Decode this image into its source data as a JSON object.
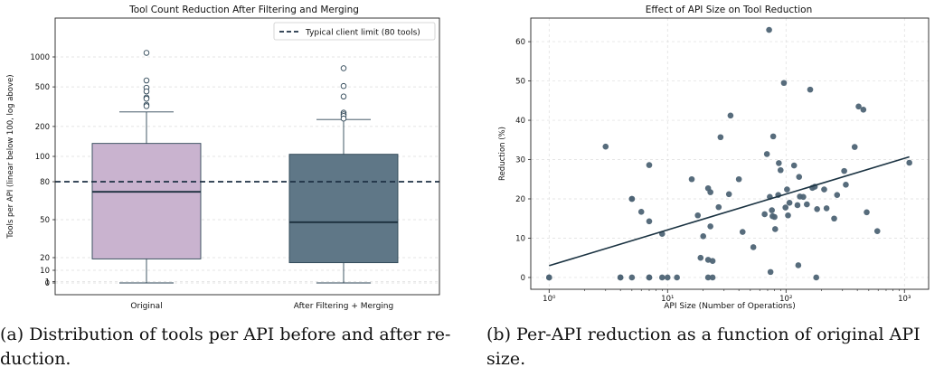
{
  "figures": {
    "a": {
      "caption_line1": "(a) Distribution of tools per API before and after re-",
      "caption_line2": "duction."
    },
    "b": {
      "caption_line1": "(b) Per-API reduction as a function of original API",
      "caption_line2": "size."
    }
  },
  "chart_data": [
    {
      "type": "box",
      "title": "Tool Count Reduction After Filtering and Merging",
      "xlabel": "",
      "ylabel": "Tools per API (linear below 100, log above)",
      "categories": [
        "Original",
        "After Filtering + Merging"
      ],
      "y_scale": "linear below 100, log above",
      "y_ticks": [
        0,
        1,
        10,
        20,
        50,
        80,
        100,
        200,
        500,
        1000
      ],
      "boxes": [
        {
          "name": "Original",
          "whisker_low": 0,
          "q1": 19,
          "median": 72,
          "q3": 135,
          "whisker_high": 280,
          "fliers": [
            1100,
            580,
            490,
            450,
            390,
            380,
            330,
            320
          ],
          "color": "#c9b3cf"
        },
        {
          "name": "After Filtering + Merging",
          "whisker_low": 0,
          "q1": 16,
          "median": 48,
          "q3": 105,
          "whisker_high": 235,
          "fliers": [
            770,
            510,
            400,
            275,
            265,
            255,
            240
          ],
          "color": "#5f7787"
        }
      ],
      "reference_line": {
        "value": 80,
        "label": "Typical client limit (80 tools)",
        "color": "#1f3245"
      },
      "legend_position": "top-right",
      "grid": true
    },
    {
      "type": "scatter",
      "title": "Effect of API Size on Tool Reduction",
      "xlabel": "API Size (Number of Operations)",
      "ylabel": "Reduction (%)",
      "x_scale": "log",
      "xlim": [
        0.7,
        1600
      ],
      "ylim": [
        -3,
        66
      ],
      "x_ticks": [
        {
          "value": 1,
          "label": "10⁰"
        },
        {
          "value": 10,
          "label": "10¹"
        },
        {
          "value": 100,
          "label": "10²"
        },
        {
          "value": 1000,
          "label": "10³"
        }
      ],
      "y_ticks": [
        0,
        10,
        20,
        30,
        40,
        50,
        60
      ],
      "point_color": "#4e6475",
      "grid": true,
      "points": [
        [
          1,
          0
        ],
        [
          1,
          0
        ],
        [
          3,
          33.3
        ],
        [
          4,
          0
        ],
        [
          4,
          0
        ],
        [
          5,
          0
        ],
        [
          5,
          20
        ],
        [
          5,
          20
        ],
        [
          6,
          16.7
        ],
        [
          7,
          0
        ],
        [
          7,
          0
        ],
        [
          7,
          14.3
        ],
        [
          7,
          28.6
        ],
        [
          9,
          11.1
        ],
        [
          9,
          0
        ],
        [
          10,
          0
        ],
        [
          12,
          0
        ],
        [
          16,
          25
        ],
        [
          18,
          15.8
        ],
        [
          19,
          5
        ],
        [
          20,
          10.5
        ],
        [
          22,
          22.7
        ],
        [
          22,
          4.5
        ],
        [
          22,
          0
        ],
        [
          23,
          21.7
        ],
        [
          23,
          13
        ],
        [
          24,
          4.2
        ],
        [
          24,
          0
        ],
        [
          27,
          17.9
        ],
        [
          28,
          35.7
        ],
        [
          33,
          21.2
        ],
        [
          34,
          41.2
        ],
        [
          40,
          25
        ],
        [
          43,
          11.6
        ],
        [
          53,
          7.7
        ],
        [
          66,
          16.1
        ],
        [
          69,
          31.4
        ],
        [
          72,
          63
        ],
        [
          73,
          20.5
        ],
        [
          74,
          1.4
        ],
        [
          76,
          17.1
        ],
        [
          77,
          15.6
        ],
        [
          78,
          35.9
        ],
        [
          80,
          15.4
        ],
        [
          81,
          12.3
        ],
        [
          86,
          21
        ],
        [
          87,
          29.1
        ],
        [
          90,
          27.3
        ],
        [
          96,
          49.5
        ],
        [
          99,
          17.8
        ],
        [
          102,
          22.4
        ],
        [
          104,
          15.8
        ],
        [
          107,
          19
        ],
        [
          117,
          28.5
        ],
        [
          125,
          18.4
        ],
        [
          127,
          3.1
        ],
        [
          129,
          25.6
        ],
        [
          131,
          20.6
        ],
        [
          140,
          20.5
        ],
        [
          150,
          18.6
        ],
        [
          160,
          47.8
        ],
        [
          167,
          22.8
        ],
        [
          175,
          23.1
        ],
        [
          180,
          0
        ],
        [
          183,
          17.4
        ],
        [
          210,
          22.4
        ],
        [
          220,
          17.6
        ],
        [
          255,
          15
        ],
        [
          270,
          21
        ],
        [
          310,
          27.1
        ],
        [
          320,
          23.6
        ],
        [
          380,
          33.2
        ],
        [
          410,
          43.5
        ],
        [
          450,
          42.7
        ],
        [
          480,
          16.6
        ],
        [
          590,
          11.8
        ],
        [
          1100,
          29.2
        ]
      ],
      "trend_line": {
        "x": [
          1,
          1100
        ],
        "y": [
          3,
          30.7
        ],
        "color": "#1b3342"
      }
    }
  ]
}
